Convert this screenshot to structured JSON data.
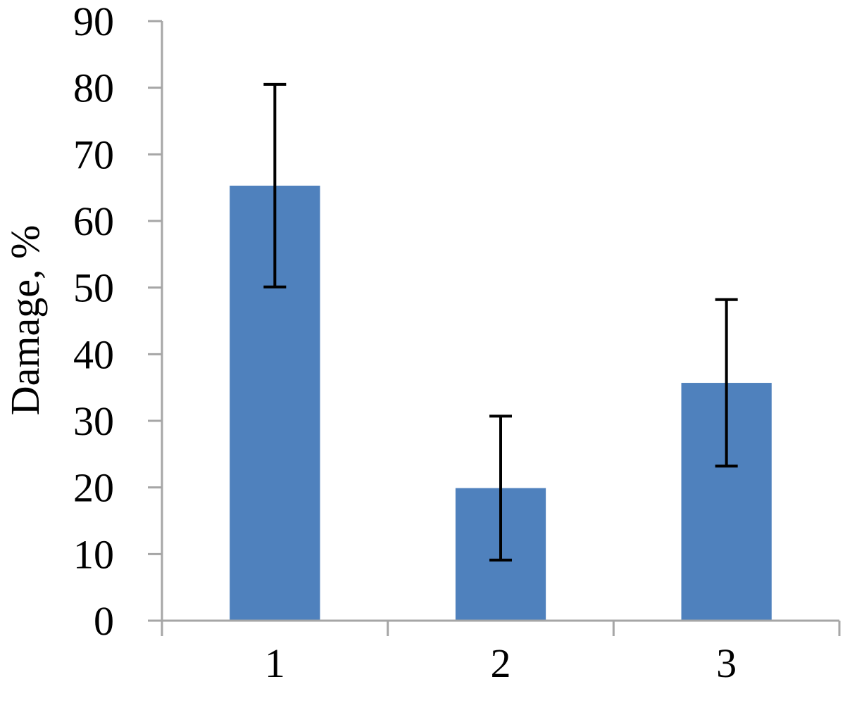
{
  "chart_data": {
    "type": "bar",
    "title": "",
    "xlabel": "",
    "ylabel": "Damage, %",
    "categories": [
      "1",
      "2",
      "3"
    ],
    "values": [
      65.3,
      19.9,
      35.7
    ],
    "error_low": [
      50.1,
      9.1,
      23.2
    ],
    "error_high": [
      80.5,
      30.7,
      48.2
    ],
    "ylim": [
      0,
      90
    ],
    "yticks": [
      "0",
      "10",
      "20",
      "30",
      "40",
      "50",
      "60",
      "70",
      "80",
      "90"
    ],
    "grid": false,
    "legend": "none",
    "bar_color": "#4f81bd",
    "axis_color": "#a6a6a6",
    "errorbar_color": "#000000"
  }
}
